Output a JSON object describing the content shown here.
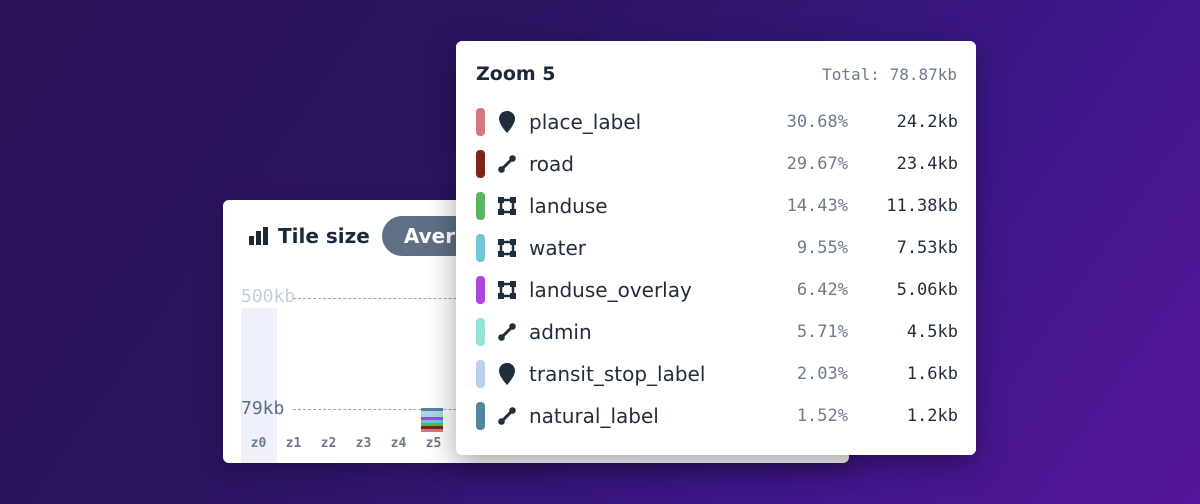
{
  "tile_panel": {
    "title": "Tile size",
    "mode_button": "Average",
    "y_labels": {
      "max": "500kb",
      "current": "79kb"
    },
    "zoom_levels": [
      "z0",
      "z1",
      "z2",
      "z3",
      "z4",
      "z5"
    ]
  },
  "zoom_details": {
    "title": "Zoom 5",
    "total": "Total: 78.87kb",
    "layers": [
      {
        "name": "place_label",
        "percent": "30.68%",
        "size": "24.2kb",
        "color": "#d67683",
        "icon": "pin-icon"
      },
      {
        "name": "road",
        "percent": "29.67%",
        "size": "23.4kb",
        "color": "#7d2516",
        "icon": "line-icon"
      },
      {
        "name": "landuse",
        "percent": "14.43%",
        "size": "11.38kb",
        "color": "#5cb45f",
        "icon": "polygon-icon"
      },
      {
        "name": "water",
        "percent": "9.55%",
        "size": "7.53kb",
        "color": "#73c6d8",
        "icon": "polygon-icon"
      },
      {
        "name": "landuse_overlay",
        "percent": "6.42%",
        "size": "5.06kb",
        "color": "#ad45e0",
        "icon": "polygon-icon"
      },
      {
        "name": "admin",
        "percent": "5.71%",
        "size": "4.5kb",
        "color": "#93e3d8",
        "icon": "line-icon"
      },
      {
        "name": "transit_stop_label",
        "percent": "2.03%",
        "size": "1.6kb",
        "color": "#b9cfec",
        "icon": "pin-icon"
      },
      {
        "name": "natural_label",
        "percent": "1.52%",
        "size": "1.2kb",
        "color": "#4d88a0",
        "icon": "line-icon"
      }
    ]
  }
}
